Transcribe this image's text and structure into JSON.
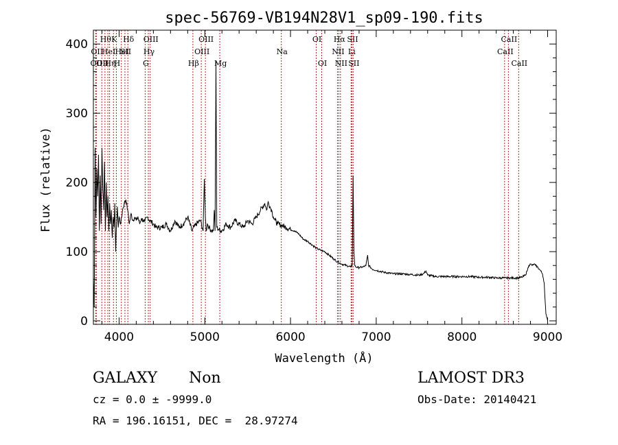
{
  "chart_data": {
    "type": "line",
    "title": "spec-56769-VB194N28V1_sp09-190.fits",
    "xlabel": "Wavelength (Å)",
    "ylabel": "Flux (relative)",
    "xlim": [
      3700,
      9100
    ],
    "ylim": [
      -5,
      420
    ],
    "xticks": [
      4000,
      5000,
      6000,
      7000,
      8000,
      9000
    ],
    "yticks": [
      0,
      100,
      200,
      300,
      400
    ],
    "grid": false,
    "line_color": "#000000",
    "marker_color": "#b22222",
    "spectrum": {
      "x": [
        3700,
        3710,
        3720,
        3730,
        3740,
        3750,
        3760,
        3770,
        3780,
        3790,
        3800,
        3810,
        3820,
        3830,
        3840,
        3850,
        3860,
        3870,
        3880,
        3890,
        3900,
        3910,
        3920,
        3930,
        3940,
        3950,
        3960,
        3970,
        3980,
        3990,
        4000,
        4020,
        4040,
        4060,
        4080,
        4100,
        4120,
        4140,
        4160,
        4180,
        4200,
        4220,
        4240,
        4260,
        4280,
        4300,
        4330,
        4360,
        4400,
        4430,
        4460,
        4500,
        4550,
        4600,
        4650,
        4700,
        4750,
        4800,
        4850,
        4900,
        4950,
        4980,
        4995,
        5007,
        5015,
        5030,
        5050,
        5080,
        5100,
        5110,
        5120,
        5130,
        5140,
        5160,
        5200,
        5250,
        5300,
        5350,
        5400,
        5450,
        5500,
        5550,
        5600,
        5650,
        5700,
        5720,
        5740,
        5760,
        5780,
        5800,
        5820,
        5850,
        5900,
        5950,
        6000,
        6050,
        6100,
        6150,
        6200,
        6250,
        6300,
        6350,
        6400,
        6450,
        6500,
        6550,
        6600,
        6650,
        6700,
        6720,
        6730,
        6740,
        6750,
        6760,
        6800,
        6850,
        6880,
        6900,
        6910,
        6930,
        6950,
        7000,
        7100,
        7200,
        7300,
        7400,
        7500,
        7550,
        7580,
        7600,
        7650,
        7700,
        7800,
        7900,
        8000,
        8100,
        8200,
        8300,
        8400,
        8500,
        8600,
        8650,
        8700,
        8740,
        8760,
        8780,
        8800,
        8820,
        8840,
        8860,
        8880,
        8900,
        8920,
        8940,
        8960,
        8970,
        8980,
        8990,
        9000
      ],
      "y": [
        60,
        20,
        250,
        150,
        220,
        180,
        240,
        130,
        210,
        140,
        250,
        190,
        160,
        230,
        130,
        200,
        150,
        180,
        130,
        170,
        140,
        160,
        120,
        150,
        135,
        170,
        100,
        140,
        165,
        135,
        150,
        140,
        160,
        170,
        175,
        160,
        140,
        155,
        145,
        150,
        145,
        150,
        140,
        148,
        145,
        143,
        150,
        145,
        140,
        135,
        135,
        135,
        140,
        130,
        145,
        135,
        140,
        150,
        130,
        140,
        145,
        130,
        205,
        150,
        130,
        140,
        135,
        130,
        130,
        160,
        130,
        375,
        135,
        132,
        130,
        140,
        135,
        145,
        140,
        135,
        145,
        140,
        150,
        160,
        170,
        160,
        172,
        165,
        160,
        150,
        145,
        140,
        138,
        135,
        132,
        130,
        125,
        118,
        115,
        110,
        105,
        102,
        100,
        95,
        90,
        85,
        82,
        80,
        78,
        80,
        210,
        100,
        80,
        78,
        77,
        78,
        80,
        95,
        80,
        78,
        75,
        73,
        70,
        68,
        68,
        67,
        66,
        68,
        72,
        66,
        65,
        64,
        64,
        64,
        64,
        64,
        63,
        63,
        62,
        62,
        62,
        62,
        63,
        66,
        72,
        80,
        82,
        80,
        82,
        80,
        78,
        75,
        72,
        68,
        55,
        30,
        10,
        5,
        0
      ]
    },
    "lines": [
      {
        "wl": 3727,
        "label": "OII",
        "row": 2
      },
      {
        "wl": 3734,
        "label": "OII",
        "row": 1
      },
      {
        "wl": 3798,
        "label": "OII",
        "row": 2
      },
      {
        "wl": 3835,
        "label": "Hθ",
        "row": 0
      },
      {
        "wl": 3869,
        "label": "HeI",
        "row": 1
      },
      {
        "wl": 3889,
        "label": "Hη",
        "row": 2
      },
      {
        "wl": 3934,
        "label": "K",
        "row": 0
      },
      {
        "wl": 3968,
        "label": "H",
        "row": 2
      },
      {
        "wl": 4026,
        "label": "HeI",
        "row": 1
      },
      {
        "wl": 4068,
        "label": "SII",
        "row": 1
      },
      {
        "wl": 4102,
        "label": "Hδ",
        "row": 0
      },
      {
        "wl": 4304,
        "label": "G",
        "row": 2
      },
      {
        "wl": 4341,
        "label": "Hγ",
        "row": 1
      },
      {
        "wl": 4363,
        "label": "OIII",
        "row": 0
      },
      {
        "wl": 4861,
        "label": "Hβ",
        "row": 2
      },
      {
        "wl": 4959,
        "label": "OIII",
        "row": 1
      },
      {
        "wl": 5007,
        "label": "OIII",
        "row": 0
      },
      {
        "wl": 5175,
        "label": "Mg",
        "row": 2
      },
      {
        "wl": 5893,
        "label": "Na",
        "row": 1
      },
      {
        "wl": 6300,
        "label": "OI",
        "row": 0
      },
      {
        "wl": 6364,
        "label": "OI",
        "row": 2
      },
      {
        "wl": 6548,
        "label": "NII",
        "row": 1
      },
      {
        "wl": 6563,
        "label": "Hα",
        "row": 0
      },
      {
        "wl": 6583,
        "label": "NII",
        "row": 2
      },
      {
        "wl": 6707,
        "label": "Li",
        "row": 1
      },
      {
        "wl": 6716,
        "label": "SII",
        "row": 0
      },
      {
        "wl": 6731,
        "label": "SII",
        "row": 2
      },
      {
        "wl": 8498,
        "label": "CaII",
        "row": 1
      },
      {
        "wl": 8542,
        "label": "CaII",
        "row": 0
      },
      {
        "wl": 8662,
        "label": "CaII",
        "row": 2
      }
    ]
  },
  "info": {
    "class_label": "GALAXY",
    "subclass_label": "Non",
    "cz_text": "cz = 0.0 ± -9999.0",
    "radec_text": "RA = 196.16151, DEC =  28.97274",
    "survey_label": "LAMOST DR3",
    "obs_date_text": "Obs-Date: 20140421"
  }
}
